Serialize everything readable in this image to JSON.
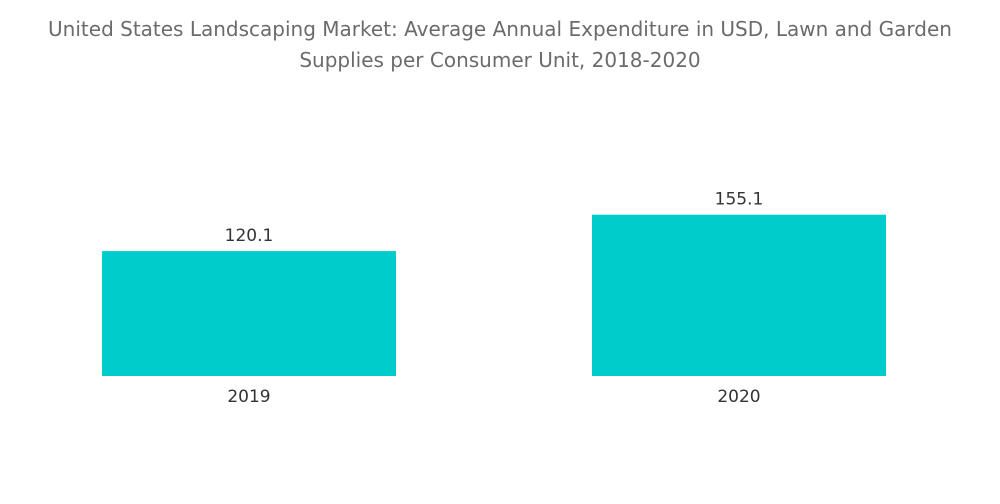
{
  "chart_title_line1": "United States Landscaping Market: Average Annual Expenditure in USD, Lawn and Garden",
  "chart_title_line2": "Supplies per Consumer Unit, 2018-2020",
  "chart_data": {
    "type": "bar",
    "title": "United States Landscaping Market: Average Annual Expenditure in USD, Lawn and Garden Supplies per Consumer Unit, 2018-2020",
    "categories": [
      "2019",
      "2020"
    ],
    "values": [
      120.1,
      155.1
    ],
    "value_labels": [
      "120.1",
      "155.1"
    ],
    "bar_color": "#00cccc",
    "grid": false,
    "legend": "none"
  }
}
